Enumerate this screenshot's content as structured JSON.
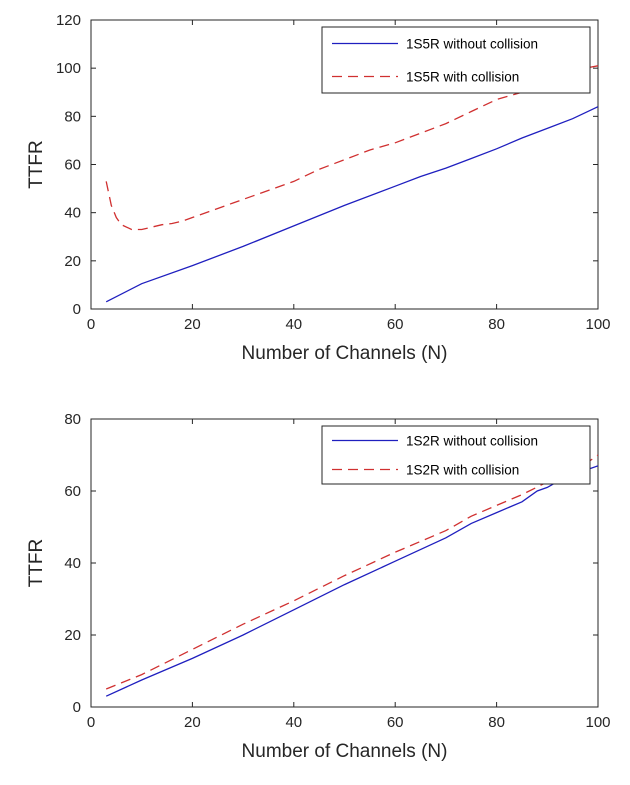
{
  "chart_data": [
    {
      "type": "line",
      "xlabel": "Number of Channels (N)",
      "ylabel": "TTFR",
      "xlim": [
        0,
        100
      ],
      "ylim": [
        0,
        120
      ],
      "xticks": [
        0,
        20,
        40,
        60,
        80,
        100
      ],
      "yticks": [
        0,
        20,
        40,
        60,
        80,
        100,
        120
      ],
      "grid": false,
      "legend": "top-right",
      "series": [
        {
          "name": "1S5R without collision",
          "color": "#1f1fbf",
          "style": "solid",
          "x": [
            3,
            10,
            20,
            30,
            40,
            50,
            60,
            65,
            70,
            75,
            80,
            85,
            90,
            95,
            100
          ],
          "y": [
            3,
            10.5,
            18,
            26,
            34.5,
            43,
            51,
            55,
            58.5,
            62.5,
            66.5,
            71,
            75,
            79,
            84
          ]
        },
        {
          "name": "1S5R with collision",
          "color": "#d03030",
          "style": "dashed",
          "x": [
            3,
            4,
            5,
            6,
            8,
            10,
            12,
            14,
            16,
            18,
            20,
            24,
            28,
            32,
            36,
            40,
            45,
            50,
            55,
            60,
            65,
            70,
            75,
            80,
            85,
            90,
            95,
            100
          ],
          "y": [
            53,
            43,
            38,
            35,
            33,
            33,
            34,
            35,
            35.5,
            36.5,
            38,
            41,
            44,
            47,
            50,
            53,
            58,
            62,
            66,
            69,
            73,
            77,
            82,
            87,
            90,
            95,
            99,
            101
          ]
        }
      ]
    },
    {
      "type": "line",
      "xlabel": "Number of Channels (N)",
      "ylabel": "TTFR",
      "xlim": [
        0,
        100
      ],
      "ylim": [
        0,
        80
      ],
      "xticks": [
        0,
        20,
        40,
        60,
        80,
        100
      ],
      "yticks": [
        0,
        20,
        40,
        60,
        80
      ],
      "grid": false,
      "legend": "top-right",
      "series": [
        {
          "name": "1S2R without collision",
          "color": "#1f1fbf",
          "style": "solid",
          "x": [
            3,
            10,
            20,
            30,
            40,
            50,
            60,
            70,
            75,
            80,
            85,
            88,
            90,
            95,
            98,
            100
          ],
          "y": [
            3,
            7.5,
            13.5,
            20,
            27,
            34,
            40.5,
            47,
            51,
            54,
            57,
            60,
            61,
            65,
            66,
            67
          ]
        },
        {
          "name": "1S2R with collision",
          "color": "#d03030",
          "style": "dashed",
          "x": [
            3,
            10,
            20,
            30,
            40,
            50,
            60,
            70,
            75,
            80,
            85,
            90,
            95,
            98,
            100
          ],
          "y": [
            5,
            9,
            16,
            23,
            29.5,
            36.5,
            43,
            49,
            53,
            56,
            59,
            62.5,
            66,
            68,
            70
          ]
        }
      ]
    }
  ]
}
